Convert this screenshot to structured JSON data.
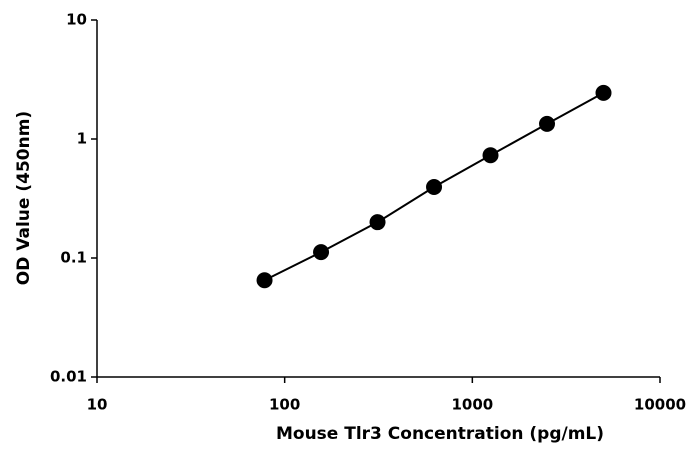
{
  "chart_data": {
    "type": "line",
    "x_label": "Mouse Tlr3 Concentration (pg/mL)",
    "y_label": "OD Value (450nm)",
    "x": [
      78.125,
      156.25,
      312.5,
      625,
      1250,
      2500,
      5000
    ],
    "series": [
      {
        "color": "#000000",
        "values": [
          0.065,
          0.112,
          0.2,
          0.395,
          0.73,
          1.34,
          2.44
        ]
      }
    ],
    "xscale": "log",
    "yscale": "log",
    "xlim": [
      10,
      10000
    ],
    "xticks": [
      10,
      100,
      1000,
      10000
    ],
    "ylim": [
      0.01,
      10
    ],
    "yticks": [
      0.01,
      0.1,
      1,
      10
    ],
    "grid": false,
    "markers": true
  }
}
